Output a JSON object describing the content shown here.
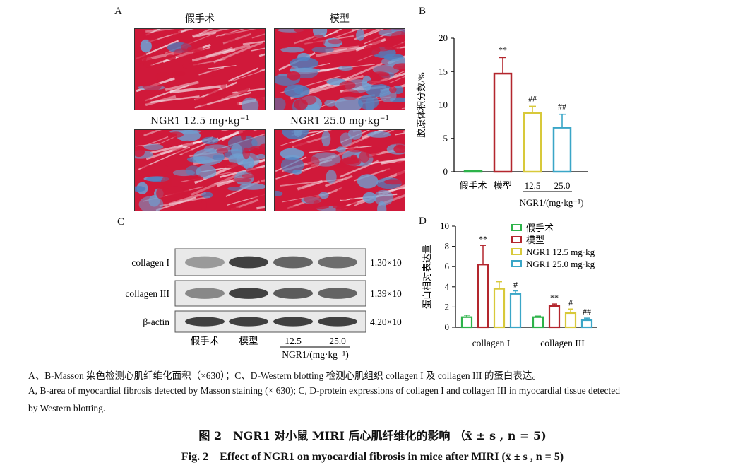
{
  "panel_letters": {
    "a": "A",
    "b": "B",
    "c": "C",
    "d": "D"
  },
  "panel_a": {
    "sham": "假手术",
    "model": "模型",
    "low_prefix": "NGR1 12.5 mg·kg",
    "high_prefix": "NGR1 25.0 mg·kg",
    "exp": "−1"
  },
  "chart_data": [
    {
      "type": "bar",
      "categories": [
        "假手术",
        "模型",
        "12.5",
        "25.0"
      ],
      "values": [
        0.1,
        14.7,
        8.8,
        6.6
      ],
      "errors": [
        0,
        2.4,
        1.0,
        2.0
      ],
      "annotations": [
        "",
        "**",
        "##",
        "##"
      ],
      "ylabel": "胶原体积分数/%",
      "xlabel": "NGR1/(mg·kg⁻¹)",
      "ylim": [
        0,
        20
      ],
      "yticks": [
        0,
        5,
        10,
        15,
        20
      ],
      "colors": [
        "#2db34a",
        "#b3262d",
        "#d8c93a",
        "#3aa6c7"
      ]
    },
    {
      "type": "bar",
      "groups": [
        "collagen I",
        "collagen III"
      ],
      "series": [
        {
          "name": "假手术",
          "values": [
            1.0,
            1.0
          ],
          "errors": [
            0.2,
            0.1
          ],
          "annotations": [
            "",
            ""
          ],
          "color": "#2db34a"
        },
        {
          "name": "模型",
          "values": [
            6.2,
            2.1
          ],
          "errors": [
            1.9,
            0.2
          ],
          "annotations": [
            "**",
            "**"
          ],
          "color": "#b3262d"
        },
        {
          "name": "NGR1 12.5 mg·kg",
          "values": [
            3.8,
            1.4
          ],
          "errors": [
            0.7,
            0.4
          ],
          "annotations": [
            "",
            "#"
          ],
          "color": "#d8c93a"
        },
        {
          "name": "NGR1 25.0 mg·kg",
          "values": [
            3.3,
            0.7
          ],
          "errors": [
            0.3,
            0.2
          ],
          "annotations": [
            "#",
            "##"
          ],
          "color": "#3aa6c7"
        }
      ],
      "legend_exp": "−1",
      "ylabel": "蛋白相对表达量",
      "ylim": [
        0,
        10
      ],
      "yticks": [
        0,
        2,
        4,
        6,
        8,
        10
      ]
    }
  ],
  "panel_c": {
    "rows": [
      {
        "label": "collagen I",
        "size": "1.30×10",
        "exp": "5"
      },
      {
        "label": "collagen III",
        "size": "1.39×10",
        "exp": "5"
      },
      {
        "label": "β-actin",
        "size": "4.20×10",
        "exp": "4"
      }
    ],
    "lanes": [
      "假手术",
      "模型",
      "12.5",
      "25.0"
    ],
    "xlabel": "NGR1/(mg·kg⁻¹)"
  },
  "caption": {
    "line_cn": "A、B-Masson 染色检测心肌纤维化面积（×630）；C、D-Western blotting 检测心肌组织 collagen I 及 collagen III 的蛋白表达。",
    "line_en1": "A, B-area of myocardial fibrosis detected by Masson staining (× 630); C, D-protein expressions of collagen I and collagen III in myocardial tissue detected",
    "line_en2": "by Western blotting.",
    "title_cn": "图 2　NGR1 对小鼠 MIRI 后心肌纤维化的影响 （x̄ ± s , n = 5)",
    "title_en": "Fig. 2　Effect of NGR1 on myocardial fibrosis in mice after MIRI (x̄ ± s , n = 5)"
  }
}
